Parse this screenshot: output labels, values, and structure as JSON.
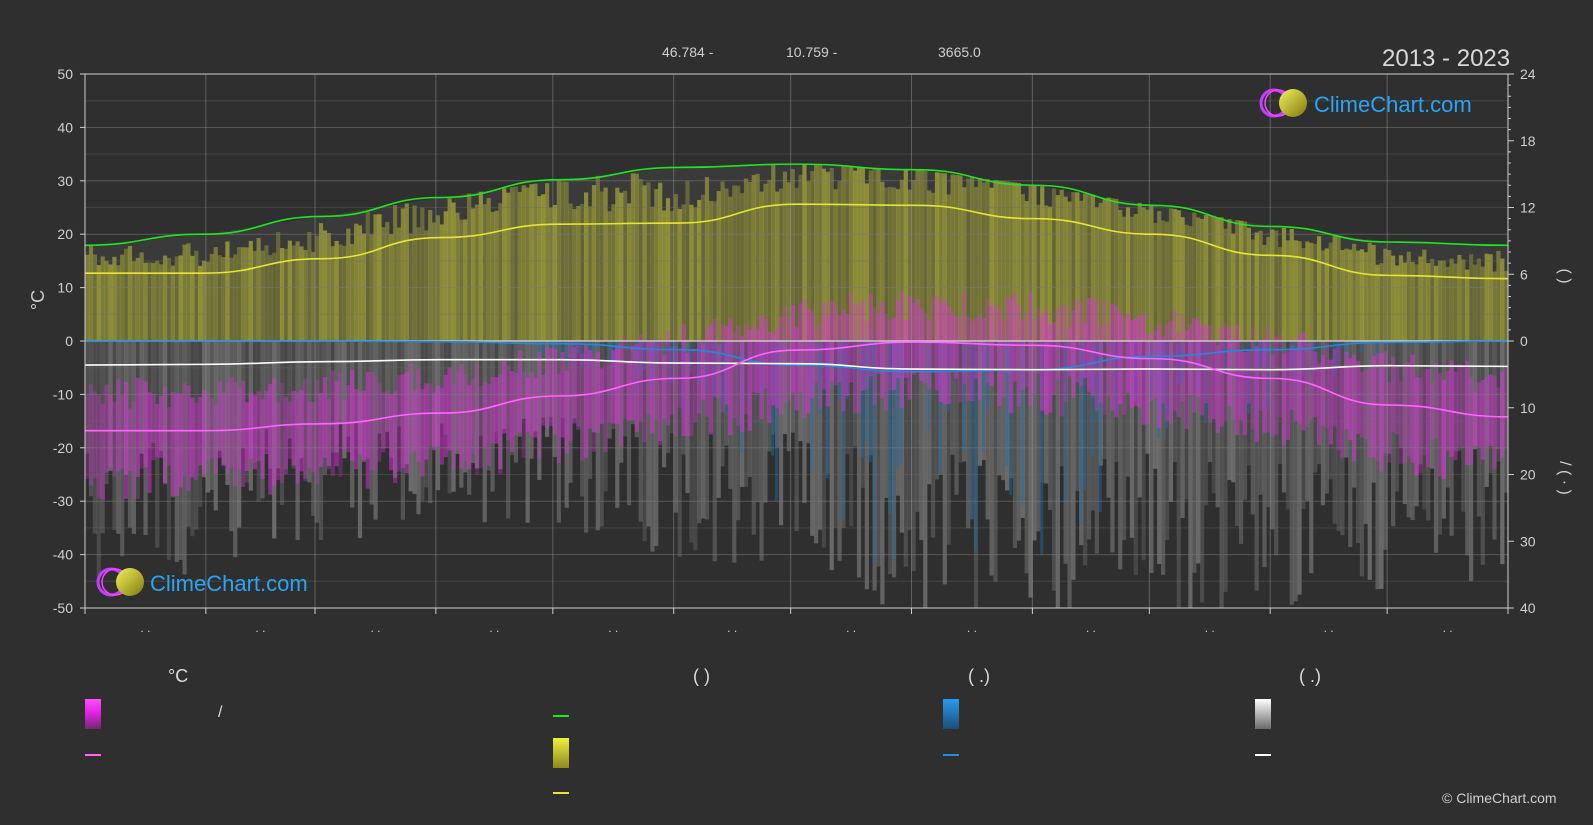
{
  "header": {
    "lat": "46.784 -",
    "lon": "10.759 -",
    "elevation": "3665.0",
    "period": "2013 - 2023"
  },
  "brand": {
    "logo_text": "ClimeChart.com",
    "copyright": "© ClimeChart.com"
  },
  "legend": {
    "col1_head": "°C",
    "col1_sep": "/",
    "col2_head": "(          )",
    "col3_head": "(   .)",
    "col4_head": "(   .)"
  },
  "chart_data": {
    "type": "area",
    "title": "",
    "left_axis": {
      "label": "°C",
      "min": -50,
      "max": 50,
      "ticks": [
        50,
        40,
        30,
        20,
        10,
        0,
        -10,
        -20,
        -30,
        -40,
        -50
      ]
    },
    "right_axis_top": {
      "label": "(   )",
      "min": 0,
      "max": 24,
      "ticks": [
        24,
        18,
        12,
        6,
        0
      ]
    },
    "right_axis_bottom": {
      "label": "/ (  ·  )",
      "min": 0,
      "max": 40,
      "ticks": [
        0,
        10,
        20,
        30,
        40
      ]
    },
    "month_tick_labels": [
      ". .",
      ". .",
      ". .",
      ". .",
      ". .",
      ". .",
      ". .",
      ". .",
      ". .",
      ". .",
      ". .",
      ". ."
    ],
    "grid": true,
    "colors": {
      "daylight": "#1ee61e",
      "sunshine": "#e6e632",
      "temperature": "#ff64ff",
      "rain": "#1e8cdc",
      "snow": "#ffffff"
    },
    "series": [
      {
        "key": "daylight",
        "unit": "h",
        "values": [
          8.6,
          9.6,
          11.2,
          12.9,
          14.5,
          15.6,
          15.9,
          15.4,
          14.0,
          12.2,
          10.3,
          8.9,
          8.6
        ]
      },
      {
        "key": "sunshine",
        "unit": "h",
        "values": [
          6.1,
          6.1,
          7.4,
          9.3,
          10.5,
          10.6,
          12.3,
          12.2,
          11.0,
          9.6,
          7.7,
          5.9,
          5.6
        ]
      },
      {
        "key": "temperature",
        "unit": "°C",
        "values": [
          -16.8,
          -16.8,
          -15.5,
          -13.5,
          -10.3,
          -7.0,
          -1.7,
          -0.2,
          -0.8,
          -3.3,
          -7.0,
          -12.0,
          -14.2
        ]
      },
      {
        "key": "rain",
        "unit": "mm",
        "values": [
          0.0,
          0.0,
          0.0,
          0.1,
          0.4,
          1.3,
          3.6,
          4.6,
          4.3,
          2.3,
          1.3,
          0.2,
          0.0
        ]
      },
      {
        "key": "snow",
        "unit": "mm",
        "values": [
          3.6,
          3.5,
          3.1,
          2.8,
          2.8,
          3.3,
          3.4,
          4.2,
          4.3,
          4.2,
          4.3,
          3.7,
          3.8
        ]
      }
    ]
  }
}
